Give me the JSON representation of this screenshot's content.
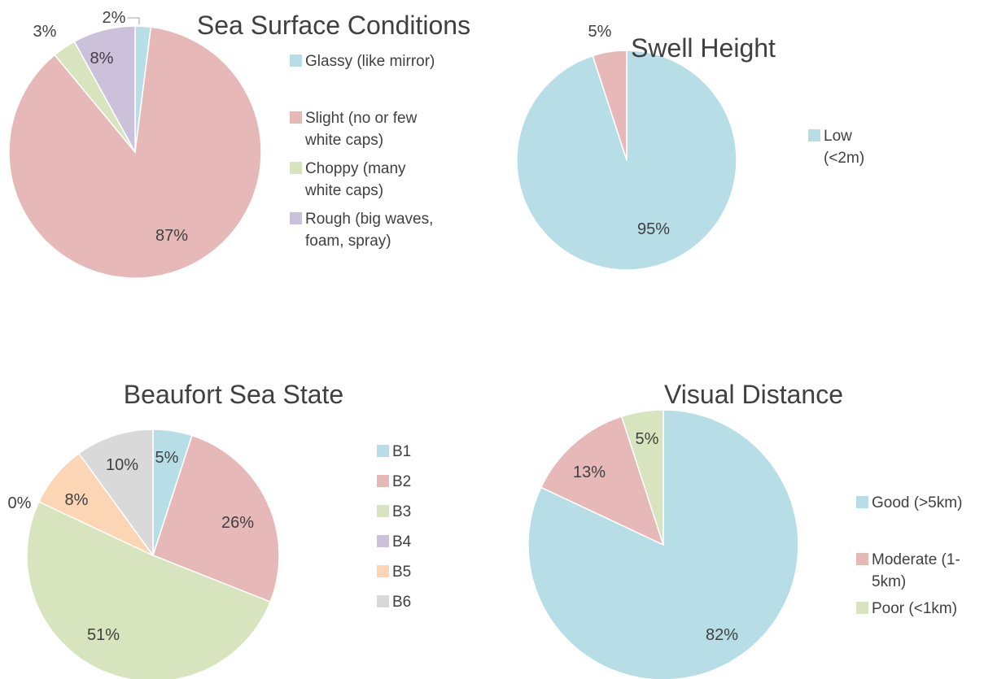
{
  "chart_data": [
    {
      "type": "pie",
      "title": "Sea Surface Conditions",
      "categories": [
        "Glassy (like mirror)",
        "Slight (no or few white caps)",
        "Choppy (many white caps)",
        "Rough (big waves, foam, spray)"
      ],
      "values": [
        2,
        87,
        3,
        8
      ],
      "labels": [
        "2%",
        "87%",
        "3%",
        "8%"
      ],
      "legend_lines": [
        [
          "Glassy (like mirror)"
        ],
        [
          "Slight (no or few",
          "white caps)"
        ],
        [
          "Choppy (many",
          "white caps)"
        ],
        [
          "Rough (big waves,",
          "foam, spray)"
        ]
      ],
      "colors": [
        "#b7dde7",
        "#e6b8b7",
        "#d7e4bd",
        "#ccc1da"
      ],
      "legend_position": "right"
    },
    {
      "type": "pie",
      "title": "Swell Height",
      "categories": [
        "Low (<2m)",
        ""
      ],
      "values": [
        95,
        5
      ],
      "labels": [
        "95%",
        "5%"
      ],
      "legend_lines": [
        [
          "Low",
          "(<2m)"
        ]
      ],
      "colors": [
        "#b7dde7",
        "#e6b8b7"
      ],
      "legend_position": "right"
    },
    {
      "type": "pie",
      "title": "Beaufort Sea State",
      "categories": [
        "B1",
        "B2",
        "B3",
        "B4",
        "B5",
        "B6"
      ],
      "values": [
        5,
        26,
        51,
        0,
        8,
        10
      ],
      "labels": [
        "5%",
        "26%",
        "51%",
        "0%",
        "8%",
        "10%"
      ],
      "legend_lines": [
        [
          "B1"
        ],
        [
          "B2"
        ],
        [
          "B3"
        ],
        [
          "B4"
        ],
        [
          "B5"
        ],
        [
          "B6"
        ]
      ],
      "colors": [
        "#b7dde7",
        "#e6b8b7",
        "#d7e4bd",
        "#ccc1da",
        "#fcd5b5",
        "#d9d9d9"
      ],
      "legend_position": "right"
    },
    {
      "type": "pie",
      "title": "Visual Distance",
      "categories": [
        "Good (>5km)",
        "Moderate (1-5km)",
        "Poor (<1km)"
      ],
      "values": [
        82,
        13,
        5
      ],
      "labels": [
        "82%",
        "13%",
        "5%"
      ],
      "legend_lines": [
        [
          "Good (>5km)"
        ],
        [
          "Moderate (1-",
          "5km)"
        ],
        [
          "Poor (<1km)"
        ]
      ],
      "colors": [
        "#b7dde7",
        "#e6b8b7",
        "#d7e4bd"
      ],
      "legend_position": "right"
    }
  ]
}
